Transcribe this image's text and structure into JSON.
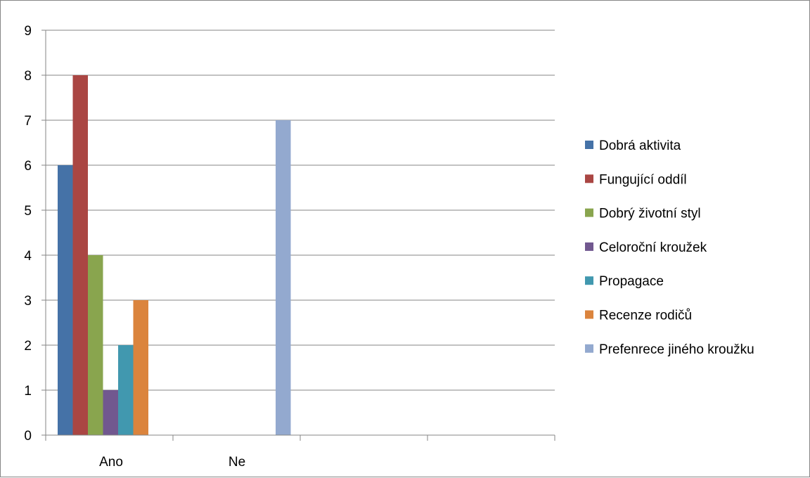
{
  "chart_data": {
    "type": "bar",
    "categories": [
      "Ano",
      "Ne",
      "",
      ""
    ],
    "series": [
      {
        "name": "Dobrá aktivita",
        "color": "#4572A7",
        "values": [
          6,
          null,
          null,
          null
        ]
      },
      {
        "name": "Fungující oddíl",
        "color": "#AA4643",
        "values": [
          8,
          null,
          null,
          null
        ]
      },
      {
        "name": "Dobrý životní styl",
        "color": "#89A54E",
        "values": [
          4,
          null,
          null,
          null
        ]
      },
      {
        "name": "Celoroční kroužek",
        "color": "#71588F",
        "values": [
          1,
          null,
          null,
          null
        ]
      },
      {
        "name": "Propagace",
        "color": "#4198AF",
        "values": [
          2,
          null,
          null,
          null
        ]
      },
      {
        "name": "Recenze rodičů",
        "color": "#DB843D",
        "values": [
          3,
          null,
          null,
          null
        ]
      },
      {
        "name": "Prefenrece jiného kroužku",
        "color": "#93A9CF",
        "values": [
          null,
          7,
          null,
          null
        ]
      }
    ],
    "ylim": [
      0,
      9
    ],
    "yticks": [
      0,
      1,
      2,
      3,
      4,
      5,
      6,
      7,
      8,
      9
    ],
    "grid": true,
    "legend_position": "right",
    "title": "",
    "xlabel": "",
    "ylabel": ""
  }
}
